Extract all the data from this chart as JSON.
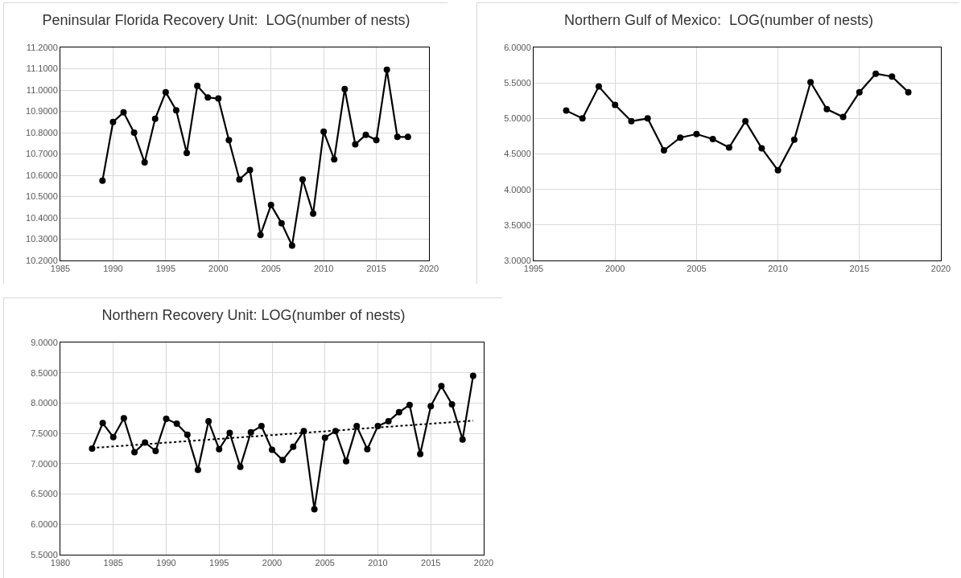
{
  "chart_data": [
    {
      "type": "line",
      "title": "Peninsular Florida Recovery Unit:  LOG(number of nests)",
      "grid": true,
      "marker": "circle",
      "line_style": "solid",
      "xlim": [
        1985,
        2020
      ],
      "xticks": [
        1985,
        1990,
        1995,
        2000,
        2005,
        2010,
        2015,
        2020
      ],
      "ylim": [
        10.2,
        11.2
      ],
      "yticks": [
        {
          "value": 10.2,
          "label": "10.2000"
        },
        {
          "value": 10.3,
          "label": "10.3000"
        },
        {
          "value": 10.4,
          "label": "10.4000"
        },
        {
          "value": 10.5,
          "label": "10.5000"
        },
        {
          "value": 10.6,
          "label": "10.6000"
        },
        {
          "value": 10.7,
          "label": "10.7000"
        },
        {
          "value": 10.8,
          "label": "10.8000"
        },
        {
          "value": 10.9,
          "label": "10.9000"
        },
        {
          "value": 11.0,
          "label": "11.0000"
        },
        {
          "value": 11.1,
          "label": "11.1000"
        },
        {
          "value": 11.2,
          "label": "11.2000"
        }
      ],
      "x": [
        1989,
        1990,
        1991,
        1992,
        1993,
        1994,
        1995,
        1996,
        1997,
        1998,
        1999,
        2000,
        2001,
        2002,
        2003,
        2004,
        2005,
        2006,
        2007,
        2008,
        2009,
        2010,
        2011,
        2012,
        2013,
        2014,
        2015,
        2016,
        2017,
        2018
      ],
      "series": [
        {
          "color": "#000000",
          "values": [
            10.575,
            10.85,
            10.895,
            10.8,
            10.66,
            10.865,
            10.99,
            10.905,
            10.705,
            11.02,
            10.965,
            10.96,
            10.765,
            10.58,
            10.625,
            10.32,
            10.46,
            10.375,
            10.27,
            10.58,
            10.42,
            10.805,
            10.675,
            11.005,
            10.745,
            10.79,
            10.765,
            11.095,
            10.78,
            10.78
          ]
        }
      ]
    },
    {
      "type": "line",
      "title": "Northern Gulf of Mexico:  LOG(number of nests)",
      "grid": true,
      "marker": "circle",
      "line_style": "solid",
      "xlim": [
        1995,
        2020
      ],
      "xticks": [
        1995,
        2000,
        2005,
        2010,
        2015,
        2020
      ],
      "ylim": [
        3,
        6
      ],
      "yticks": [
        {
          "value": 3,
          "label": "3.0000"
        },
        {
          "value": 3.5,
          "label": "3.5000"
        },
        {
          "value": 4,
          "label": "4.0000"
        },
        {
          "value": 4.5,
          "label": "4.5000"
        },
        {
          "value": 5,
          "label": "5.0000"
        },
        {
          "value": 5.5,
          "label": "5.5000"
        },
        {
          "value": 6,
          "label": "6.0000"
        }
      ],
      "x": [
        1997,
        1998,
        1999,
        2000,
        2001,
        2002,
        2003,
        2004,
        2005,
        2006,
        2007,
        2008,
        2009,
        2010,
        2011,
        2012,
        2013,
        2014,
        2015,
        2016,
        2017,
        2018
      ],
      "series": [
        {
          "color": "#000000",
          "values": [
            5.11,
            5.0,
            5.45,
            5.19,
            4.96,
            5.0,
            4.55,
            4.73,
            4.78,
            4.71,
            4.59,
            4.96,
            4.58,
            4.27,
            4.7,
            5.51,
            5.13,
            5.02,
            5.37,
            5.63,
            5.59,
            5.37
          ]
        }
      ]
    },
    {
      "type": "line",
      "title": "Northern Recovery Unit: LOG(number of nests)",
      "grid": true,
      "marker": "circle",
      "line_style": "solid",
      "xlim": [
        1980,
        2020
      ],
      "xticks": [
        1980,
        1985,
        1990,
        1995,
        2000,
        2005,
        2010,
        2015,
        2020
      ],
      "ylim": [
        5.5,
        9
      ],
      "yticks": [
        {
          "value": 5.5,
          "label": "5.5000"
        },
        {
          "value": 6,
          "label": "6.0000"
        },
        {
          "value": 6.5,
          "label": "6.5000"
        },
        {
          "value": 7,
          "label": "7.0000"
        },
        {
          "value": 7.5,
          "label": "7.5000"
        },
        {
          "value": 8,
          "label": "8.0000"
        },
        {
          "value": 8.5,
          "label": "8.5000"
        },
        {
          "value": 9,
          "label": "9.0000"
        }
      ],
      "x": [
        1983,
        1984,
        1985,
        1986,
        1987,
        1988,
        1989,
        1990,
        1991,
        1992,
        1993,
        1994,
        1995,
        1996,
        1997,
        1998,
        1999,
        2000,
        2001,
        2002,
        2003,
        2004,
        2005,
        2006,
        2007,
        2008,
        2009,
        2010,
        2011,
        2012,
        2013,
        2014,
        2015,
        2016,
        2017,
        2018,
        2019
      ],
      "series": [
        {
          "color": "#000000",
          "values": [
            7.25,
            7.67,
            7.44,
            7.75,
            7.19,
            7.35,
            7.21,
            7.74,
            7.66,
            7.48,
            6.9,
            7.7,
            7.24,
            7.51,
            6.95,
            7.52,
            7.62,
            7.23,
            7.06,
            7.28,
            7.54,
            6.25,
            7.43,
            7.54,
            7.04,
            7.62,
            7.24,
            7.62,
            7.7,
            7.85,
            7.97,
            7.16,
            7.95,
            8.28,
            7.98,
            7.4,
            8.45
          ]
        },
        {
          "type": "line",
          "color": "#000000",
          "x": [
            1983,
            2019
          ],
          "values": [
            7.26,
            7.71
          ],
          "marker": "none",
          "line_style": "dotted"
        }
      ]
    }
  ]
}
